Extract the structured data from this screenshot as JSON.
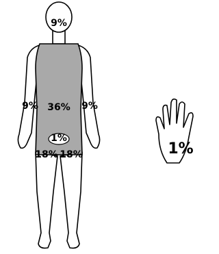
{
  "labels": {
    "head": "9%",
    "torso": "36%",
    "left_arm": "9%",
    "right_arm": "9%",
    "groin": "1%",
    "left_leg": "18%",
    "right_leg": "18%",
    "hand": "1%"
  }
}
